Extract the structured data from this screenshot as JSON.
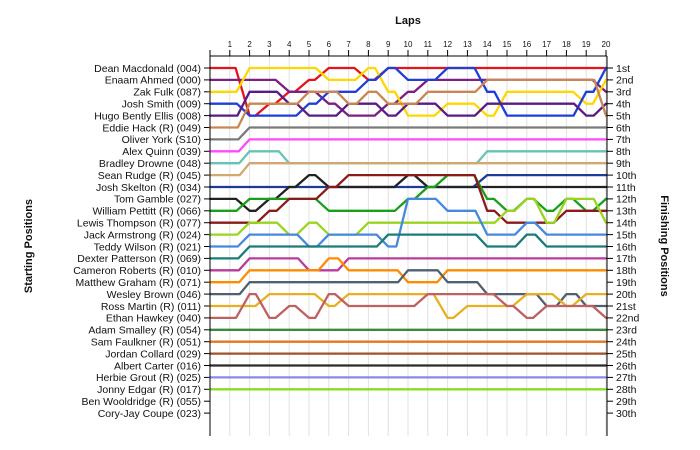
{
  "chart_data": {
    "type": "line",
    "title": "",
    "xlabel": "Laps",
    "ylabel_left": "Starting Positions",
    "ylabel_right": "Finishing Positions",
    "laps": [
      "1",
      "2",
      "3",
      "4",
      "5",
      "6",
      "7",
      "8",
      "9",
      "10",
      "11",
      "12",
      "13",
      "14",
      "15",
      "16",
      "17",
      "18",
      "19",
      "20"
    ],
    "drivers": [
      "Dean Macdonald (004)",
      "Enaam Ahmed (000)",
      "Zak Fulk (087)",
      "Josh Smith (009)",
      "Hugo Bently Ellis (008)",
      "Eddie Hack (R) (049)",
      "Oliver York (S10)",
      "Alex Quinn (039)",
      "Bradley Drowne (048)",
      "Sean Rudge (R) (045)",
      "Josh Skelton (R) (034)",
      "Tom Gamble (027)",
      "William Pettitt (R) (066)",
      "Lewis Thompson (R) (077)",
      "Jack Armstrong (R) (024)",
      "Teddy Wilson (R) (021)",
      "Dexter Patterson (R) (069)",
      "Cameron Roberts (R) (010)",
      "Matthew Graham (R) (071)",
      "Wesley Brown (046)",
      "Ross Martin (R) (011)",
      "Ethan Hawkey (040)",
      "Adam Smalley (R) (054)",
      "Sam Faulkner (R) (051)",
      "Jordan Collard (029)",
      "Albert Carter (016)",
      "Herbie Grout (R) (025)",
      "Jonny Edgar (R) (017)",
      "Ben Wooldridge (R) (055)",
      "Cory-Jay Coupe (023)"
    ],
    "finishing_positions": [
      "1st",
      "2nd",
      "3rd",
      "4th",
      "5th",
      "6th",
      "7th",
      "8th",
      "9th",
      "10th",
      "11th",
      "12th",
      "13th",
      "14th",
      "15th",
      "16th",
      "17th",
      "18th",
      "19th",
      "20th",
      "21st",
      "22nd",
      "23rd",
      "24th",
      "25th",
      "26th",
      "27th",
      "28th",
      "29th",
      "30th"
    ],
    "ylim": [
      1,
      30
    ],
    "series": [
      {
        "color": "#e6131b",
        "values": [
          1,
          5,
          4,
          3,
          2,
          1,
          1,
          2,
          1,
          1,
          1,
          1,
          1,
          1,
          1,
          1,
          1,
          1,
          1,
          1
        ]
      },
      {
        "color": "#7b1f82",
        "values": [
          2,
          2,
          2,
          3,
          3,
          4,
          5,
          5,
          4,
          3,
          2,
          2,
          2,
          2,
          2,
          2,
          2,
          2,
          2,
          3
        ]
      },
      {
        "color": "#ffd700",
        "values": [
          3,
          1,
          1,
          1,
          1,
          2,
          2,
          1,
          3,
          5,
          5,
          4,
          4,
          5,
          3,
          3,
          3,
          3,
          4,
          2
        ]
      },
      {
        "color": "#1f3fd6",
        "values": [
          4,
          5,
          5,
          5,
          4,
          3,
          3,
          2,
          1,
          2,
          2,
          1,
          1,
          3,
          5,
          5,
          5,
          5,
          3,
          1
        ]
      },
      {
        "color": "#5a1a86",
        "values": [
          5,
          3,
          3,
          4,
          5,
          5,
          4,
          4,
          5,
          4,
          4,
          5,
          5,
          4,
          4,
          4,
          4,
          4,
          5,
          4
        ]
      },
      {
        "color": "#c98652",
        "values": [
          6,
          4,
          4,
          4,
          3,
          3,
          4,
          3,
          4,
          4,
          3,
          3,
          3,
          2,
          2,
          2,
          2,
          2,
          2,
          5
        ]
      },
      {
        "color": "#7a7a7a",
        "values": [
          7,
          6,
          6,
          6,
          6,
          6,
          6,
          6,
          6,
          6,
          6,
          6,
          6,
          6,
          6,
          6,
          6,
          6,
          6,
          6
        ]
      },
      {
        "color": "#ff49ff",
        "values": [
          8,
          7,
          7,
          7,
          7,
          7,
          7,
          7,
          7,
          7,
          7,
          7,
          7,
          7,
          7,
          7,
          7,
          7,
          7,
          7
        ]
      },
      {
        "color": "#67c3b3",
        "values": [
          9,
          8,
          8,
          9,
          9,
          9,
          9,
          9,
          9,
          9,
          9,
          9,
          9,
          8,
          8,
          8,
          8,
          8,
          8,
          8
        ]
      },
      {
        "color": "#d0a870",
        "values": [
          10,
          9,
          9,
          9,
          9,
          9,
          9,
          9,
          9,
          9,
          9,
          9,
          9,
          9,
          9,
          9,
          9,
          9,
          9,
          9
        ]
      },
      {
        "color": "#1c3a98",
        "values": [
          11,
          11,
          11,
          11,
          11,
          11,
          11,
          11,
          11,
          11,
          11,
          11,
          11,
          10,
          10,
          10,
          10,
          10,
          10,
          10
        ]
      },
      {
        "color": "#222222",
        "values": [
          12,
          13,
          12,
          11,
          10,
          11,
          11,
          11,
          11,
          10,
          11,
          11,
          11,
          11,
          11,
          11,
          11,
          11,
          11,
          11
        ]
      },
      {
        "color": "#18a018",
        "values": [
          13,
          12,
          12,
          12,
          12,
          13,
          13,
          13,
          13,
          12,
          11,
          10,
          10,
          12,
          13,
          12,
          13,
          12,
          13,
          12
        ]
      },
      {
        "color": "#8b1a1a",
        "values": [
          14,
          14,
          13,
          12,
          12,
          11,
          10,
          10,
          10,
          10,
          10,
          10,
          10,
          13,
          14,
          14,
          14,
          13,
          13,
          13
        ]
      },
      {
        "color": "#9ad41f",
        "values": [
          15,
          14,
          14,
          15,
          14,
          15,
          15,
          14,
          14,
          14,
          14,
          14,
          14,
          14,
          13,
          12,
          14,
          12,
          12,
          14
        ]
      },
      {
        "color": "#4488e0",
        "values": [
          16,
          15,
          15,
          15,
          16,
          15,
          15,
          15,
          16,
          12,
          12,
          13,
          13,
          15,
          15,
          14,
          15,
          15,
          15,
          15
        ]
      },
      {
        "color": "#1b7a7a",
        "values": [
          17,
          16,
          16,
          16,
          16,
          16,
          16,
          16,
          15,
          15,
          15,
          15,
          15,
          16,
          16,
          15,
          16,
          16,
          16,
          16
        ]
      },
      {
        "color": "#b83d9b",
        "values": [
          18,
          17,
          17,
          17,
          18,
          18,
          17,
          17,
          17,
          17,
          17,
          17,
          17,
          17,
          17,
          17,
          17,
          17,
          17,
          17
        ]
      },
      {
        "color": "#ff8c00",
        "values": [
          19,
          18,
          18,
          18,
          18,
          17,
          18,
          18,
          18,
          19,
          19,
          18,
          18,
          18,
          18,
          18,
          18,
          18,
          18,
          18
        ]
      },
      {
        "color": "#506070",
        "values": [
          20,
          19,
          19,
          19,
          19,
          19,
          19,
          19,
          19,
          18,
          18,
          19,
          19,
          20,
          20,
          20,
          21,
          20,
          21,
          21
        ]
      },
      {
        "color": "#e8b020",
        "values": [
          21,
          21,
          20,
          20,
          20,
          21,
          20,
          20,
          20,
          20,
          20,
          22,
          21,
          21,
          21,
          20,
          20,
          21,
          20,
          20
        ]
      },
      {
        "color": "#c06060",
        "values": [
          22,
          20,
          22,
          21,
          22,
          20,
          21,
          21,
          21,
          21,
          20,
          20,
          20,
          20,
          21,
          22,
          21,
          21,
          21,
          22
        ]
      },
      {
        "color": "#3a8a3a",
        "values": [
          23,
          23,
          23,
          23,
          23,
          23,
          23,
          23,
          23,
          23,
          23,
          23,
          23,
          23,
          23,
          23,
          23,
          23,
          23,
          23
        ]
      },
      {
        "color": "#e07820",
        "values": [
          24,
          24,
          24,
          24,
          24,
          24,
          24,
          24,
          24,
          24,
          24,
          24,
          24,
          24,
          24,
          24,
          24,
          24,
          24,
          24
        ]
      },
      {
        "color": "#a0522d",
        "values": [
          25,
          25,
          25,
          25,
          25,
          25,
          25,
          25,
          25,
          25,
          25,
          25,
          25,
          25,
          25,
          25,
          25,
          25,
          25,
          25
        ]
      },
      {
        "color": "#2a2a2a",
        "values": [
          26,
          26,
          26,
          26,
          26,
          26,
          26,
          26,
          26,
          26,
          26,
          26,
          26,
          26,
          26,
          26,
          26,
          26,
          26,
          26
        ]
      },
      {
        "color": "#8888ee",
        "values": [
          27,
          27,
          27,
          27,
          27,
          27,
          27,
          27,
          27,
          27,
          27,
          27,
          27,
          27,
          27,
          27,
          27,
          27,
          27,
          27
        ]
      },
      {
        "color": "#88dd22",
        "values": [
          28,
          28,
          28,
          28,
          28,
          28,
          28,
          28,
          28,
          28,
          28,
          28,
          28,
          28,
          28,
          28,
          28,
          28,
          28,
          28
        ]
      }
    ]
  }
}
